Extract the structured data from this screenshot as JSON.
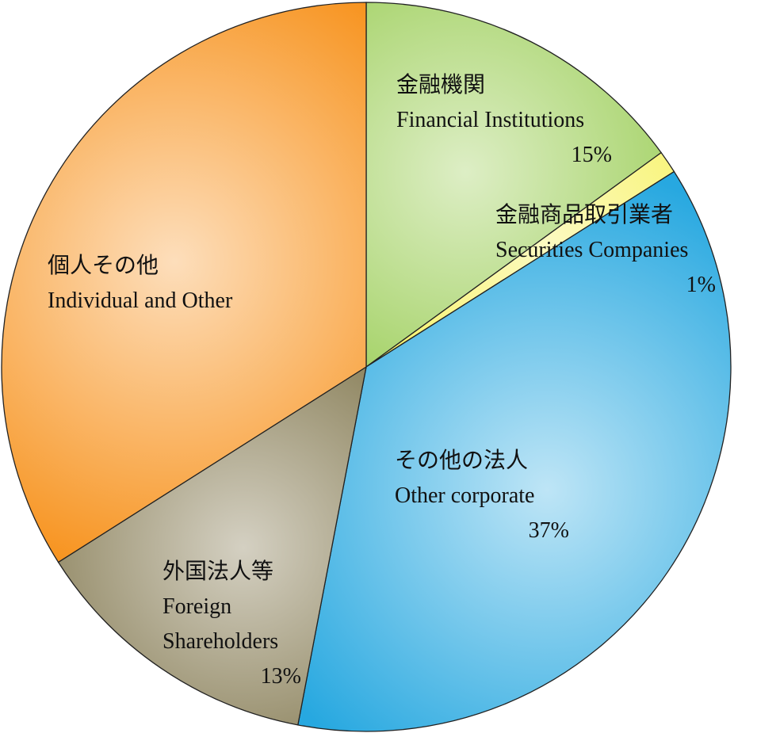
{
  "chart_data": {
    "type": "pie",
    "labels_ja": [
      "金融機関",
      "金融商品取引業者",
      "その他の法人",
      "外国法人等",
      "個人その他"
    ],
    "categories": [
      "Financial Institutions",
      "Securities Companies",
      "Other corporate",
      "Foreign Shareholders",
      "Individual and Other"
    ],
    "values": [
      15,
      1,
      37,
      13,
      34
    ],
    "value_labels": [
      "15%",
      "1%",
      "37%",
      "13%",
      null
    ],
    "colors": [
      "#8cc63e",
      "#f4ee30",
      "#27a8e0",
      "#6e6232",
      "#f7921c"
    ]
  }
}
